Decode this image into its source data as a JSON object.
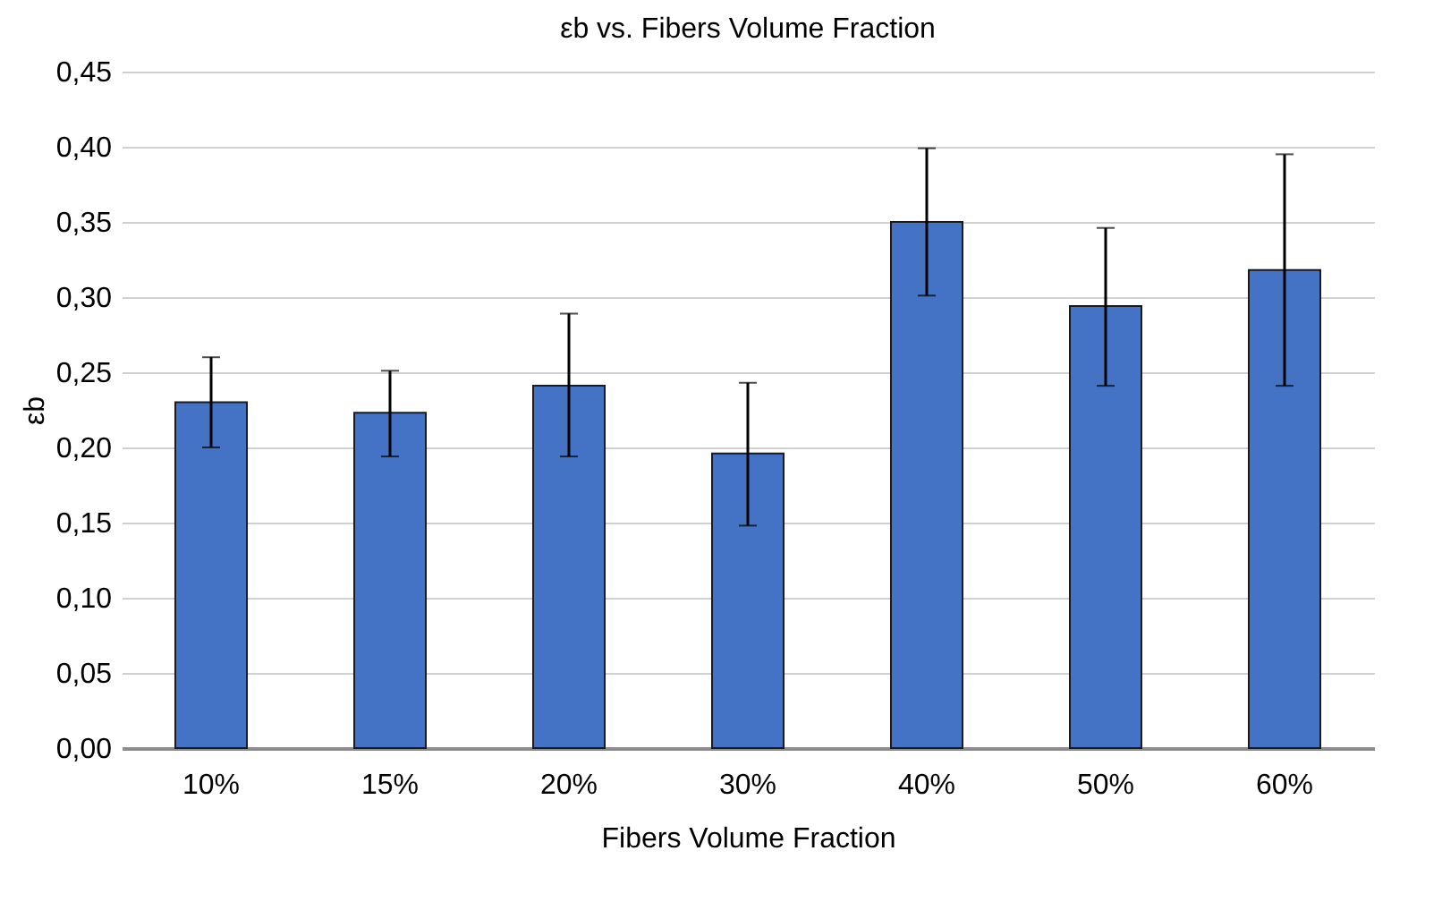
{
  "chart_data": {
    "type": "bar",
    "title": "εb vs. Fibers Volume Fraction",
    "xlabel": "Fibers Volume Fraction",
    "ylabel": "εb",
    "categories": [
      "10%",
      "15%",
      "20%",
      "30%",
      "40%",
      "50%",
      "60%"
    ],
    "values": [
      0.23,
      0.223,
      0.241,
      0.196,
      0.35,
      0.294,
      0.318
    ],
    "errors": [
      [
        0.2,
        0.26
      ],
      [
        0.194,
        0.251
      ],
      [
        0.194,
        0.289
      ],
      [
        0.148,
        0.243
      ],
      [
        0.301,
        0.399
      ],
      [
        0.241,
        0.346
      ],
      [
        0.241,
        0.395
      ]
    ],
    "color": "#4472c4",
    "ylim": [
      0,
      0.45
    ],
    "yticks": [
      {
        "value": 0,
        "label": "0,00"
      },
      {
        "value": 0.05,
        "label": "0,05"
      },
      {
        "value": 0.1,
        "label": "0,10"
      },
      {
        "value": 0.15,
        "label": "0,15"
      },
      {
        "value": 0.2,
        "label": "0,20"
      },
      {
        "value": 0.25,
        "label": "0,25"
      },
      {
        "value": 0.3,
        "label": "0,30"
      },
      {
        "value": 0.35,
        "label": "0,35"
      },
      {
        "value": 0.4,
        "label": "0,40"
      },
      {
        "value": 0.45,
        "label": "0,45"
      }
    ],
    "grid": "y"
  }
}
